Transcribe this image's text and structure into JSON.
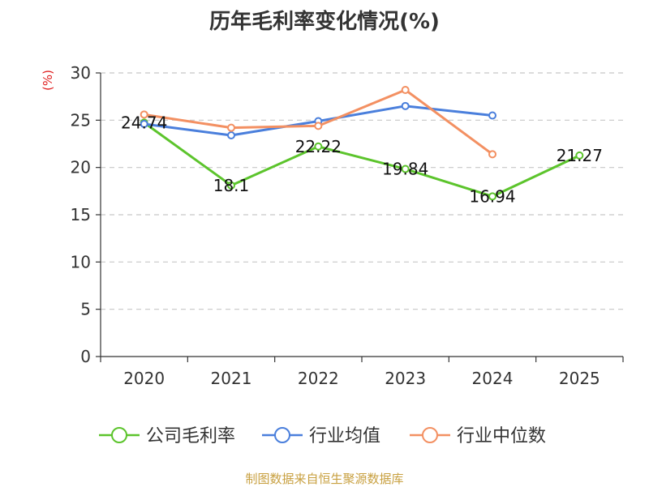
{
  "title": "历年毛利率变化情况(%)",
  "y_unit": "(%)",
  "source": "制图数据来自恒生聚源数据库",
  "colors": {
    "company": "#5cc42c",
    "industry_avg": "#4a7fdc",
    "industry_median": "#f39062",
    "grid": "#c8c8c8",
    "axis": "#333333",
    "unit": "#e02020",
    "source": "#c8a040"
  },
  "chart_data": {
    "type": "line",
    "title": "历年毛利率变化情况(%)",
    "xlabel": "",
    "ylabel": "(%)",
    "categories": [
      "2020",
      "2021",
      "2022",
      "2023",
      "2024",
      "2025"
    ],
    "ylim": [
      0,
      30
    ],
    "yticks": [
      0,
      5,
      10,
      15,
      20,
      25,
      30
    ],
    "grid": true,
    "legend_position": "bottom",
    "series": [
      {
        "name": "公司毛利率",
        "color": "#5cc42c",
        "values": [
          24.74,
          18.1,
          22.22,
          19.84,
          16.94,
          21.27
        ],
        "labels": [
          "24.74",
          "18.1",
          "22.22",
          "19.84",
          "16.94",
          "21.27"
        ]
      },
      {
        "name": "行业均值",
        "color": "#4a7fdc",
        "values": [
          24.6,
          23.4,
          24.9,
          26.5,
          25.5,
          null
        ]
      },
      {
        "name": "行业中位数",
        "color": "#f39062",
        "values": [
          25.6,
          24.2,
          24.4,
          28.2,
          21.4,
          null
        ]
      }
    ]
  }
}
